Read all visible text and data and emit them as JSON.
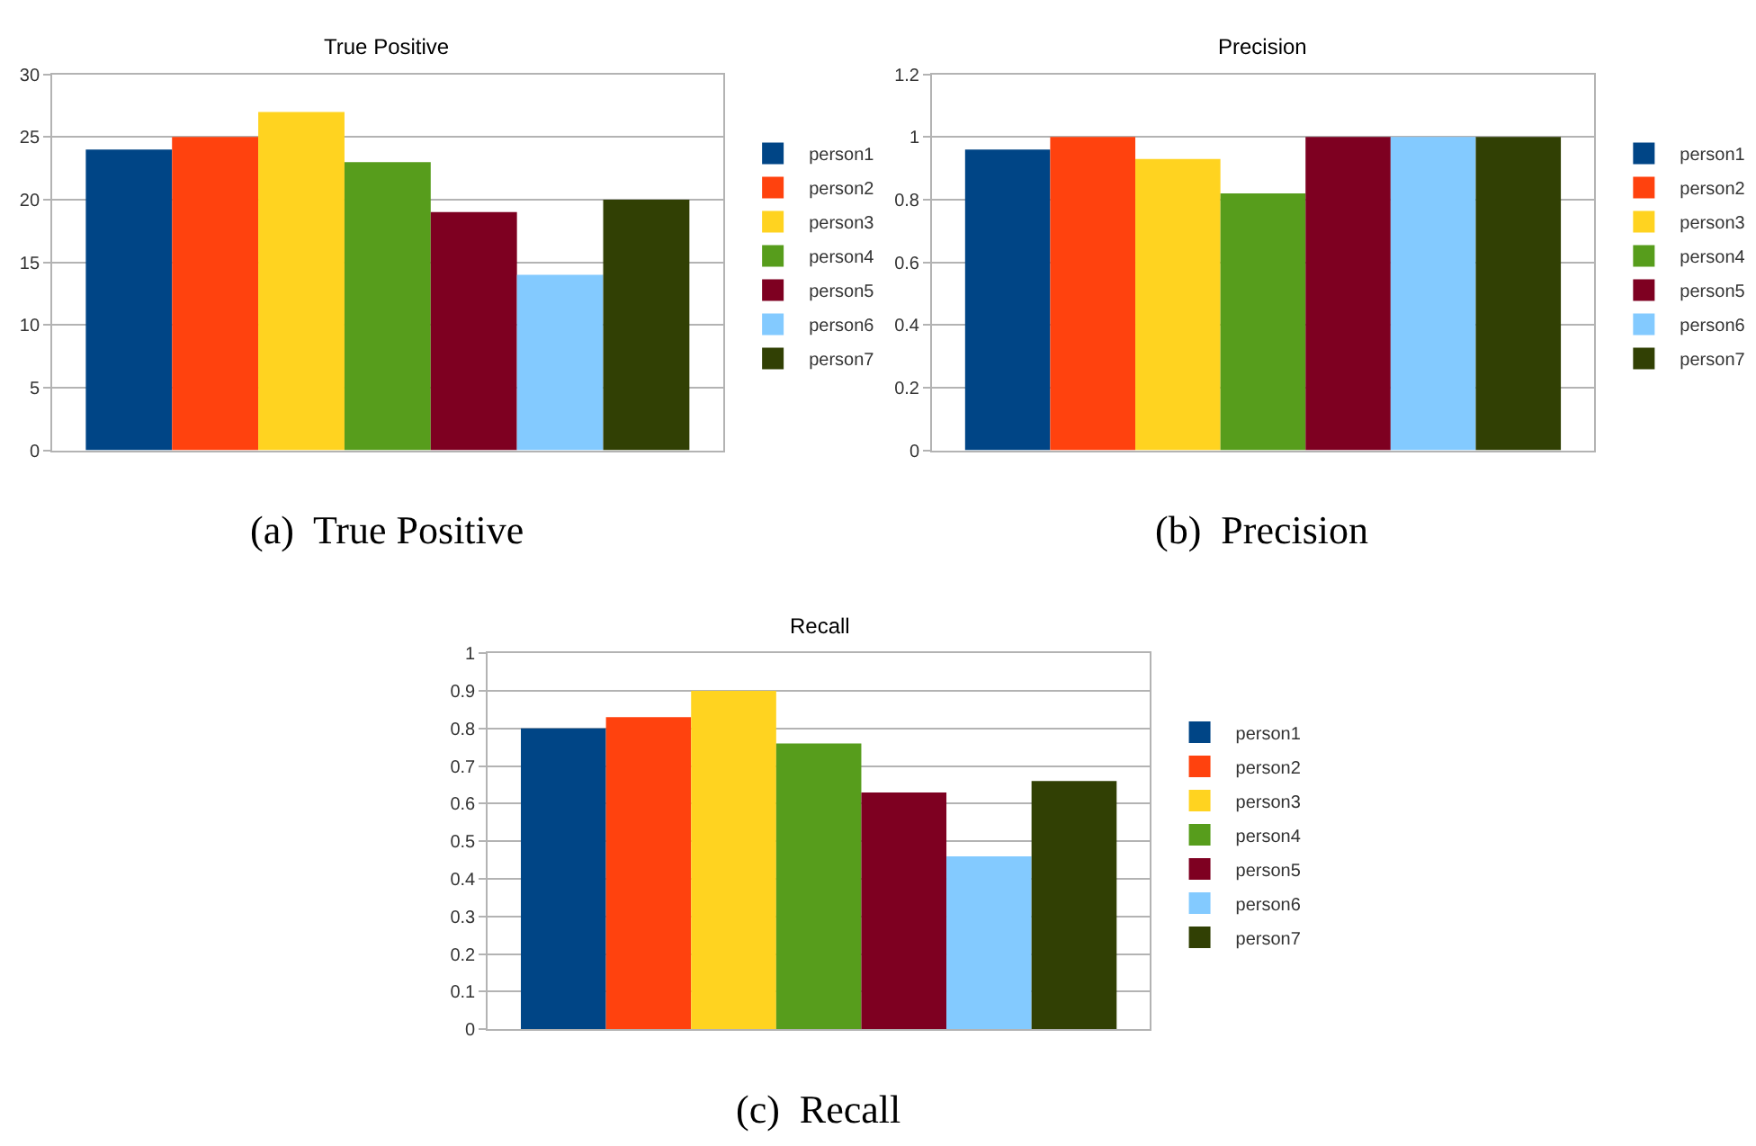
{
  "chart_data": [
    {
      "type": "bar",
      "title": "True Positive",
      "categories": [
        null
      ],
      "series": [
        {
          "name": "person1",
          "color": "#004586",
          "values": [
            24
          ]
        },
        {
          "name": "person2",
          "color": "#ff420e",
          "values": [
            25
          ]
        },
        {
          "name": "person3",
          "color": "#ffd320",
          "values": [
            27
          ]
        },
        {
          "name": "person4",
          "color": "#579d1c",
          "values": [
            23
          ]
        },
        {
          "name": "person5",
          "color": "#7e0021",
          "values": [
            19
          ]
        },
        {
          "name": "person6",
          "color": "#83caff",
          "values": [
            14
          ]
        },
        {
          "name": "person7",
          "color": "#314004",
          "values": [
            20
          ]
        }
      ],
      "ylim": [
        0,
        30
      ],
      "yticks": [
        0,
        5,
        10,
        15,
        20,
        25,
        30
      ],
      "grid": "y",
      "legend": "right",
      "annotations": [
        "(a)  True Positive"
      ]
    },
    {
      "type": "bar",
      "title": "Precision",
      "categories": [
        null
      ],
      "series": [
        {
          "name": "person1",
          "color": "#004586",
          "values": [
            0.96
          ]
        },
        {
          "name": "person2",
          "color": "#ff420e",
          "values": [
            1.0
          ]
        },
        {
          "name": "person3",
          "color": "#ffd320",
          "values": [
            0.93
          ]
        },
        {
          "name": "person4",
          "color": "#579d1c",
          "values": [
            0.82
          ]
        },
        {
          "name": "person5",
          "color": "#7e0021",
          "values": [
            1.0
          ]
        },
        {
          "name": "person6",
          "color": "#83caff",
          "values": [
            1.0
          ]
        },
        {
          "name": "person7",
          "color": "#314004",
          "values": [
            1.0
          ]
        }
      ],
      "ylim": [
        0,
        1.2
      ],
      "yticks": [
        0,
        0.2,
        0.4,
        0.6,
        0.8,
        1,
        1.2
      ],
      "grid": "y",
      "legend": "right",
      "annotations": [
        "(b)  Precision"
      ]
    },
    {
      "type": "bar",
      "title": "Recall",
      "categories": [
        null
      ],
      "series": [
        {
          "name": "person1",
          "color": "#004586",
          "values": [
            0.8
          ]
        },
        {
          "name": "person2",
          "color": "#ff420e",
          "values": [
            0.83
          ]
        },
        {
          "name": "person3",
          "color": "#ffd320",
          "values": [
            0.9
          ]
        },
        {
          "name": "person4",
          "color": "#579d1c",
          "values": [
            0.76
          ]
        },
        {
          "name": "person5",
          "color": "#7e0021",
          "values": [
            0.63
          ]
        },
        {
          "name": "person6",
          "color": "#83caff",
          "values": [
            0.46
          ]
        },
        {
          "name": "person7",
          "color": "#314004",
          "values": [
            0.66
          ]
        }
      ],
      "ylim": [
        0,
        1
      ],
      "yticks": [
        0,
        0.1,
        0.2,
        0.3,
        0.4,
        0.5,
        0.6,
        0.7,
        0.8,
        0.9,
        1
      ],
      "grid": "y",
      "legend": "right",
      "annotations": [
        "(c)  Recall"
      ]
    }
  ]
}
